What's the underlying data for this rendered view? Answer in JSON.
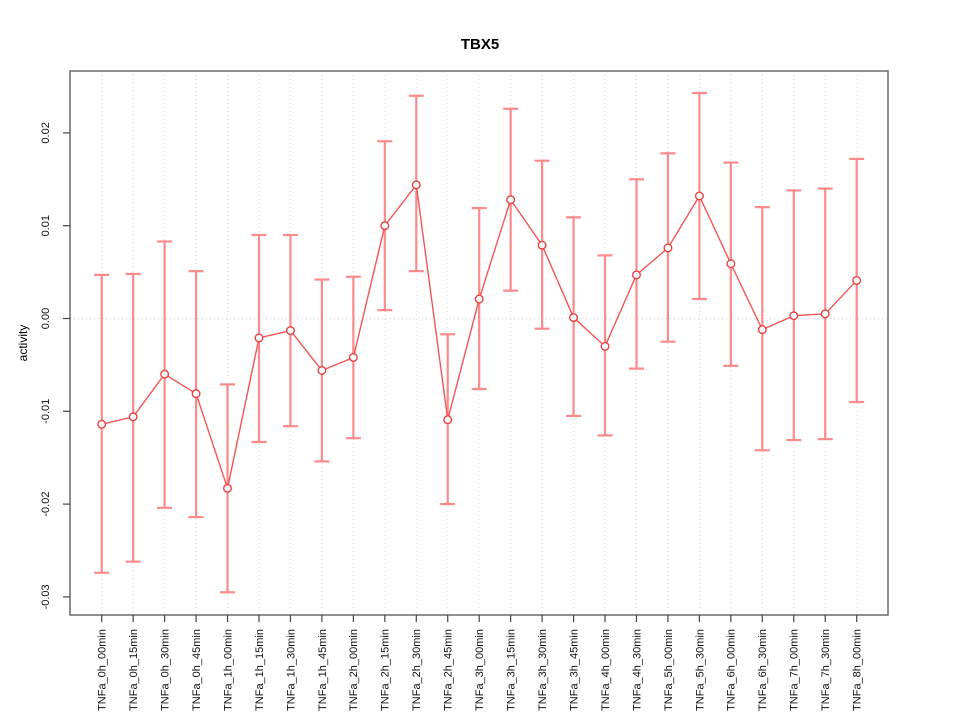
{
  "chart_data": {
    "type": "line",
    "title": "TBX5",
    "xlabel": "",
    "ylabel": "activity",
    "legend_position": "none",
    "grid": "vertical dotted line per category + dotted horizontal line at 0",
    "ylim": [
      -0.032,
      0.0267
    ],
    "yticks": [
      0.02,
      0.01,
      0.0,
      -0.01,
      -0.02,
      -0.03
    ],
    "ytick_labels": [
      "0.02",
      "0.01",
      "0.00",
      "-0.01",
      "-0.02",
      "-0.03"
    ],
    "categories": [
      "TNFa_0h_00min",
      "TNFa_0h_15min",
      "TNFa_0h_30min",
      "TNFa_0h_45min",
      "TNFa_1h_00min",
      "TNFa_1h_15min",
      "TNFa_1h_30min",
      "TNFa_1h_45min",
      "TNFa_2h_00min",
      "TNFa_2h_15min",
      "TNFa_2h_30min",
      "TNFa_2h_45min",
      "TNFa_3h_00min",
      "TNFa_3h_15min",
      "TNFa_3h_30min",
      "TNFa_3h_45min",
      "TNFa_4h_00min",
      "TNFa_4h_30min",
      "TNFa_5h_00min",
      "TNFa_5h_30min",
      "TNFa_6h_00min",
      "TNFa_6h_30min",
      "TNFa_7h_00min",
      "TNFa_7h_30min",
      "TNFa_8h_00min"
    ],
    "series": [
      {
        "name": "activity (point estimate with error bars)",
        "marker": "open-circle",
        "values": [
          -0.0114,
          -0.0106,
          -0.006,
          -0.0081,
          -0.0183,
          -0.0021,
          -0.0013,
          -0.0056,
          -0.0042,
          0.01,
          0.0144,
          -0.0109,
          0.0021,
          0.0128,
          0.0079,
          0.0001,
          -0.003,
          0.0047,
          0.0076,
          0.0132,
          0.0059,
          -0.0012,
          0.0003,
          0.0005,
          0.0041
        ],
        "error_low": [
          -0.0274,
          -0.0262,
          -0.0204,
          -0.0214,
          -0.0295,
          -0.0133,
          -0.0116,
          -0.0154,
          -0.0129,
          0.0009,
          0.0051,
          -0.02,
          -0.0076,
          0.003,
          -0.0011,
          -0.0105,
          -0.0126,
          -0.0054,
          -0.0025,
          0.0021,
          -0.0051,
          -0.0142,
          -0.0131,
          -0.013,
          -0.009
        ],
        "error_high": [
          0.0047,
          0.0048,
          0.0083,
          0.0051,
          -0.0071,
          0.009,
          0.009,
          0.0042,
          0.0045,
          0.0191,
          0.024,
          -0.0017,
          0.0119,
          0.0226,
          0.017,
          0.0109,
          0.0068,
          0.015,
          0.0178,
          0.0243,
          0.0168,
          0.012,
          0.0138,
          0.014,
          0.0172
        ]
      }
    ],
    "colors": {
      "point_stroke": "#E84040",
      "line": "#F25555",
      "error_bar": "#FB8A8A",
      "gridline": "#D9D9D9",
      "zero_line": "#D0D0D0",
      "box_border": "#6A6A6A",
      "tick": "#444444",
      "text": "#000000",
      "background": "#FFFFFF"
    }
  }
}
